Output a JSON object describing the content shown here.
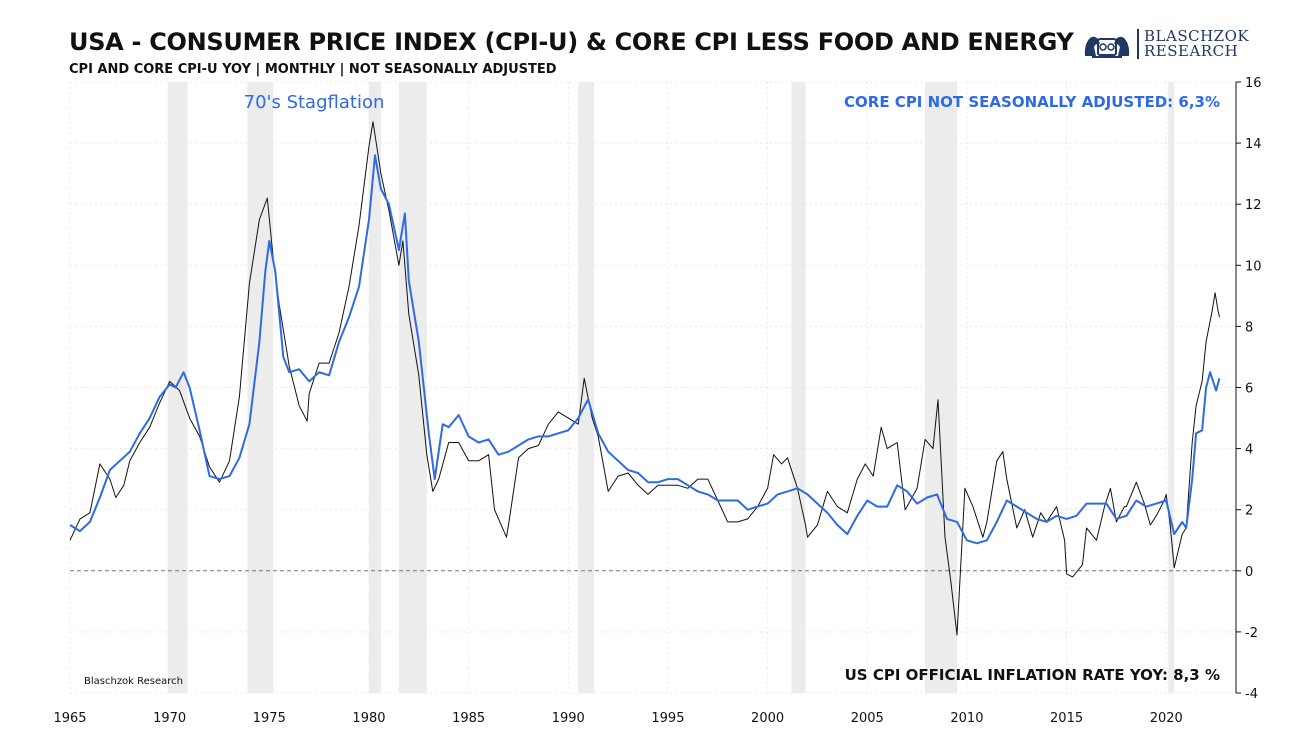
{
  "title": "USA - CONSUMER PRICE INDEX (CPI-U) & CORE CPI LESS FOOD AND ENERGY",
  "subtitle": "CPI AND CORE CPI-U YOY | MONTHLY | NOT SEASONALLY ADJUSTED",
  "logo": {
    "line1": "BLASCHZOK",
    "line2": "RESEARCH"
  },
  "colors": {
    "core": "#2f6ae6",
    "cpi": "#111111",
    "recession": "#ececec",
    "grid": "#e9e9e9"
  },
  "chart_data": {
    "type": "line",
    "title": "USA - CONSUMER PRICE INDEX (CPI-U) & CORE CPI LESS FOOD AND ENERGY",
    "xlim": [
      1965,
      2023.5
    ],
    "ylim": [
      -4,
      16
    ],
    "x_ticks": [
      "1965",
      "1970",
      "1975",
      "1980",
      "1985",
      "1990",
      "1995",
      "2000",
      "2005",
      "2010",
      "2015",
      "2020"
    ],
    "y_ticks": [
      "16",
      "14",
      "12",
      "10",
      "8",
      "6",
      "4",
      "2",
      "0",
      "-2",
      "-4"
    ],
    "y_axis_side": "right",
    "grid": true,
    "zero_line": "dashed",
    "recessions": [
      [
        1969.9,
        1970.9
      ],
      [
        1973.9,
        1975.2
      ],
      [
        1980.0,
        1980.6
      ],
      [
        1981.5,
        1982.9
      ],
      [
        1990.5,
        1991.3
      ],
      [
        2001.2,
        2001.9
      ],
      [
        2007.9,
        2009.5
      ],
      [
        2020.1,
        2020.4
      ]
    ],
    "annotations": {
      "stagflation": "70's Stagflation",
      "core_label": "CORE CPI NOT SEASONALLY ADJUSTED: 6,3%",
      "cpi_label": "US CPI OFFICIAL INFLATION RATE YOY: 8,3 %",
      "source": "Blaschzok Research"
    },
    "series": [
      {
        "name": "Core CPI",
        "color": "#2f6ae6",
        "points": [
          [
            1965,
            1.5
          ],
          [
            1965.5,
            1.3
          ],
          [
            1966,
            1.6
          ],
          [
            1966.5,
            2.4
          ],
          [
            1967,
            3.3
          ],
          [
            1967.5,
            3.6
          ],
          [
            1968,
            3.9
          ],
          [
            1968.5,
            4.5
          ],
          [
            1969,
            5.0
          ],
          [
            1969.5,
            5.7
          ],
          [
            1970,
            6.1
          ],
          [
            1970.3,
            6.0
          ],
          [
            1970.7,
            6.5
          ],
          [
            1971,
            6.0
          ],
          [
            1971.5,
            4.6
          ],
          [
            1972,
            3.1
          ],
          [
            1972.5,
            3.0
          ],
          [
            1973,
            3.1
          ],
          [
            1973.5,
            3.7
          ],
          [
            1974,
            4.8
          ],
          [
            1974.5,
            7.5
          ],
          [
            1974.8,
            9.8
          ],
          [
            1975,
            10.8
          ],
          [
            1975.3,
            9.8
          ],
          [
            1975.7,
            7.0
          ],
          [
            1976,
            6.5
          ],
          [
            1976.5,
            6.6
          ],
          [
            1977,
            6.2
          ],
          [
            1977.5,
            6.5
          ],
          [
            1978,
            6.4
          ],
          [
            1978.5,
            7.5
          ],
          [
            1979,
            8.3
          ],
          [
            1979.5,
            9.3
          ],
          [
            1980,
            11.5
          ],
          [
            1980.3,
            13.6
          ],
          [
            1980.6,
            12.5
          ],
          [
            1981,
            12.0
          ],
          [
            1981.5,
            10.5
          ],
          [
            1981.8,
            11.7
          ],
          [
            1982,
            9.5
          ],
          [
            1982.5,
            7.5
          ],
          [
            1983,
            4.5
          ],
          [
            1983.3,
            3.0
          ],
          [
            1983.7,
            4.8
          ],
          [
            1984,
            4.7
          ],
          [
            1984.5,
            5.1
          ],
          [
            1985,
            4.4
          ],
          [
            1985.5,
            4.2
          ],
          [
            1986,
            4.3
          ],
          [
            1986.5,
            3.8
          ],
          [
            1987,
            3.9
          ],
          [
            1987.5,
            4.1
          ],
          [
            1988,
            4.3
          ],
          [
            1988.5,
            4.4
          ],
          [
            1989,
            4.4
          ],
          [
            1989.5,
            4.5
          ],
          [
            1990,
            4.6
          ],
          [
            1990.5,
            5.0
          ],
          [
            1990.9,
            5.5
          ],
          [
            1991,
            5.6
          ],
          [
            1991.5,
            4.5
          ],
          [
            1992,
            3.9
          ],
          [
            1992.5,
            3.6
          ],
          [
            1993,
            3.3
          ],
          [
            1993.5,
            3.2
          ],
          [
            1994,
            2.9
          ],
          [
            1994.5,
            2.9
          ],
          [
            1995,
            3.0
          ],
          [
            1995.5,
            3.0
          ],
          [
            1996,
            2.8
          ],
          [
            1996.5,
            2.6
          ],
          [
            1997,
            2.5
          ],
          [
            1997.5,
            2.3
          ],
          [
            1998,
            2.3
          ],
          [
            1998.5,
            2.3
          ],
          [
            1999,
            2.0
          ],
          [
            1999.5,
            2.1
          ],
          [
            2000,
            2.2
          ],
          [
            2000.5,
            2.5
          ],
          [
            2001,
            2.6
          ],
          [
            2001.5,
            2.7
          ],
          [
            2002,
            2.5
          ],
          [
            2002.5,
            2.2
          ],
          [
            2003,
            1.9
          ],
          [
            2003.5,
            1.5
          ],
          [
            2004,
            1.2
          ],
          [
            2004.5,
            1.8
          ],
          [
            2005,
            2.3
          ],
          [
            2005.5,
            2.1
          ],
          [
            2006,
            2.1
          ],
          [
            2006.5,
            2.8
          ],
          [
            2007,
            2.6
          ],
          [
            2007.5,
            2.2
          ],
          [
            2008,
            2.4
          ],
          [
            2008.5,
            2.5
          ],
          [
            2009,
            1.7
          ],
          [
            2009.5,
            1.6
          ],
          [
            2010,
            1.0
          ],
          [
            2010.5,
            0.9
          ],
          [
            2011,
            1.0
          ],
          [
            2011.5,
            1.6
          ],
          [
            2012,
            2.3
          ],
          [
            2012.5,
            2.1
          ],
          [
            2013,
            1.9
          ],
          [
            2013.5,
            1.7
          ],
          [
            2014,
            1.6
          ],
          [
            2014.5,
            1.8
          ],
          [
            2015,
            1.7
          ],
          [
            2015.5,
            1.8
          ],
          [
            2016,
            2.2
          ],
          [
            2016.5,
            2.2
          ],
          [
            2017,
            2.2
          ],
          [
            2017.5,
            1.7
          ],
          [
            2018,
            1.8
          ],
          [
            2018.5,
            2.3
          ],
          [
            2019,
            2.1
          ],
          [
            2019.5,
            2.2
          ],
          [
            2020,
            2.3
          ],
          [
            2020.4,
            1.2
          ],
          [
            2020.8,
            1.6
          ],
          [
            2021,
            1.4
          ],
          [
            2021.3,
            3.0
          ],
          [
            2021.5,
            4.5
          ],
          [
            2021.8,
            4.6
          ],
          [
            2022,
            6.0
          ],
          [
            2022.2,
            6.5
          ],
          [
            2022.5,
            5.9
          ],
          [
            2022.67,
            6.3
          ]
        ]
      },
      {
        "name": "CPI",
        "color": "#111111",
        "points": [
          [
            1965,
            1.0
          ],
          [
            1965.5,
            1.7
          ],
          [
            1966,
            1.9
          ],
          [
            1966.5,
            3.5
          ],
          [
            1967,
            3.0
          ],
          [
            1967.3,
            2.4
          ],
          [
            1967.7,
            2.8
          ],
          [
            1968,
            3.6
          ],
          [
            1968.5,
            4.2
          ],
          [
            1969,
            4.7
          ],
          [
            1969.5,
            5.5
          ],
          [
            1970,
            6.2
          ],
          [
            1970.5,
            5.9
          ],
          [
            1971,
            5.0
          ],
          [
            1971.5,
            4.4
          ],
          [
            1972,
            3.4
          ],
          [
            1972.5,
            2.9
          ],
          [
            1973,
            3.6
          ],
          [
            1973.5,
            5.7
          ],
          [
            1974,
            9.4
          ],
          [
            1974.5,
            11.5
          ],
          [
            1974.9,
            12.2
          ],
          [
            1975.2,
            10.2
          ],
          [
            1975.5,
            8.7
          ],
          [
            1976,
            6.7
          ],
          [
            1976.5,
            5.4
          ],
          [
            1976.9,
            4.9
          ],
          [
            1977,
            5.8
          ],
          [
            1977.5,
            6.8
          ],
          [
            1978,
            6.8
          ],
          [
            1978.5,
            7.8
          ],
          [
            1979,
            9.3
          ],
          [
            1979.5,
            11.3
          ],
          [
            1980,
            13.9
          ],
          [
            1980.2,
            14.7
          ],
          [
            1980.6,
            13.0
          ],
          [
            1981,
            11.8
          ],
          [
            1981.5,
            10.0
          ],
          [
            1981.7,
            10.8
          ],
          [
            1982,
            8.4
          ],
          [
            1982.5,
            6.4
          ],
          [
            1982.9,
            3.8
          ],
          [
            1983.2,
            2.6
          ],
          [
            1983.5,
            3.0
          ],
          [
            1984,
            4.2
          ],
          [
            1984.5,
            4.2
          ],
          [
            1985,
            3.6
          ],
          [
            1985.5,
            3.6
          ],
          [
            1986,
            3.8
          ],
          [
            1986.3,
            2.0
          ],
          [
            1986.9,
            1.1
          ],
          [
            1987,
            1.5
          ],
          [
            1987.5,
            3.7
          ],
          [
            1988,
            4.0
          ],
          [
            1988.5,
            4.1
          ],
          [
            1989,
            4.8
          ],
          [
            1989.5,
            5.2
          ],
          [
            1990,
            5.0
          ],
          [
            1990.5,
            4.8
          ],
          [
            1990.8,
            6.3
          ],
          [
            1991.2,
            5.0
          ],
          [
            1991.5,
            4.4
          ],
          [
            1992,
            2.6
          ],
          [
            1992.5,
            3.1
          ],
          [
            1993,
            3.2
          ],
          [
            1993.5,
            2.8
          ],
          [
            1994,
            2.5
          ],
          [
            1994.5,
            2.8
          ],
          [
            1995,
            2.8
          ],
          [
            1995.5,
            2.8
          ],
          [
            1996,
            2.7
          ],
          [
            1996.5,
            3.0
          ],
          [
            1997,
            3.0
          ],
          [
            1997.5,
            2.3
          ],
          [
            1998,
            1.6
          ],
          [
            1998.5,
            1.6
          ],
          [
            1999,
            1.7
          ],
          [
            1999.5,
            2.1
          ],
          [
            2000,
            2.7
          ],
          [
            2000.3,
            3.8
          ],
          [
            2000.7,
            3.5
          ],
          [
            2001,
            3.7
          ],
          [
            2001.5,
            2.7
          ],
          [
            2001.9,
            1.5
          ],
          [
            2002,
            1.1
          ],
          [
            2002.5,
            1.5
          ],
          [
            2003,
            2.6
          ],
          [
            2003.5,
            2.1
          ],
          [
            2004,
            1.9
          ],
          [
            2004.5,
            3.0
          ],
          [
            2004.9,
            3.5
          ],
          [
            2005.3,
            3.1
          ],
          [
            2005.7,
            4.7
          ],
          [
            2006,
            4.0
          ],
          [
            2006.5,
            4.2
          ],
          [
            2006.9,
            2.0
          ],
          [
            2007,
            2.1
          ],
          [
            2007.5,
            2.7
          ],
          [
            2007.9,
            4.3
          ],
          [
            2008.3,
            4.0
          ],
          [
            2008.55,
            5.6
          ],
          [
            2008.9,
            1.1
          ],
          [
            2009.2,
            -0.4
          ],
          [
            2009.5,
            -2.1
          ],
          [
            2009.9,
            2.7
          ],
          [
            2010.3,
            2.1
          ],
          [
            2010.8,
            1.1
          ],
          [
            2011,
            1.6
          ],
          [
            2011.5,
            3.6
          ],
          [
            2011.8,
            3.9
          ],
          [
            2012,
            3.0
          ],
          [
            2012.5,
            1.4
          ],
          [
            2012.9,
            2.0
          ],
          [
            2013.3,
            1.1
          ],
          [
            2013.7,
            1.9
          ],
          [
            2014,
            1.6
          ],
          [
            2014.5,
            2.1
          ],
          [
            2014.9,
            1.0
          ],
          [
            2015,
            -0.1
          ],
          [
            2015.3,
            -0.2
          ],
          [
            2015.8,
            0.2
          ],
          [
            2016,
            1.4
          ],
          [
            2016.5,
            1.0
          ],
          [
            2016.9,
            2.1
          ],
          [
            2017.2,
            2.7
          ],
          [
            2017.5,
            1.6
          ],
          [
            2017.9,
            2.1
          ],
          [
            2018,
            2.1
          ],
          [
            2018.5,
            2.9
          ],
          [
            2018.9,
            2.2
          ],
          [
            2019.2,
            1.5
          ],
          [
            2019.5,
            1.8
          ],
          [
            2019.9,
            2.3
          ],
          [
            2020,
            2.5
          ],
          [
            2020.2,
            1.5
          ],
          [
            2020.4,
            0.1
          ],
          [
            2020.8,
            1.2
          ],
          [
            2021,
            1.4
          ],
          [
            2021.3,
            4.2
          ],
          [
            2021.5,
            5.4
          ],
          [
            2021.8,
            6.2
          ],
          [
            2022,
            7.5
          ],
          [
            2022.3,
            8.5
          ],
          [
            2022.45,
            9.1
          ],
          [
            2022.6,
            8.5
          ],
          [
            2022.67,
            8.3
          ]
        ]
      }
    ]
  }
}
